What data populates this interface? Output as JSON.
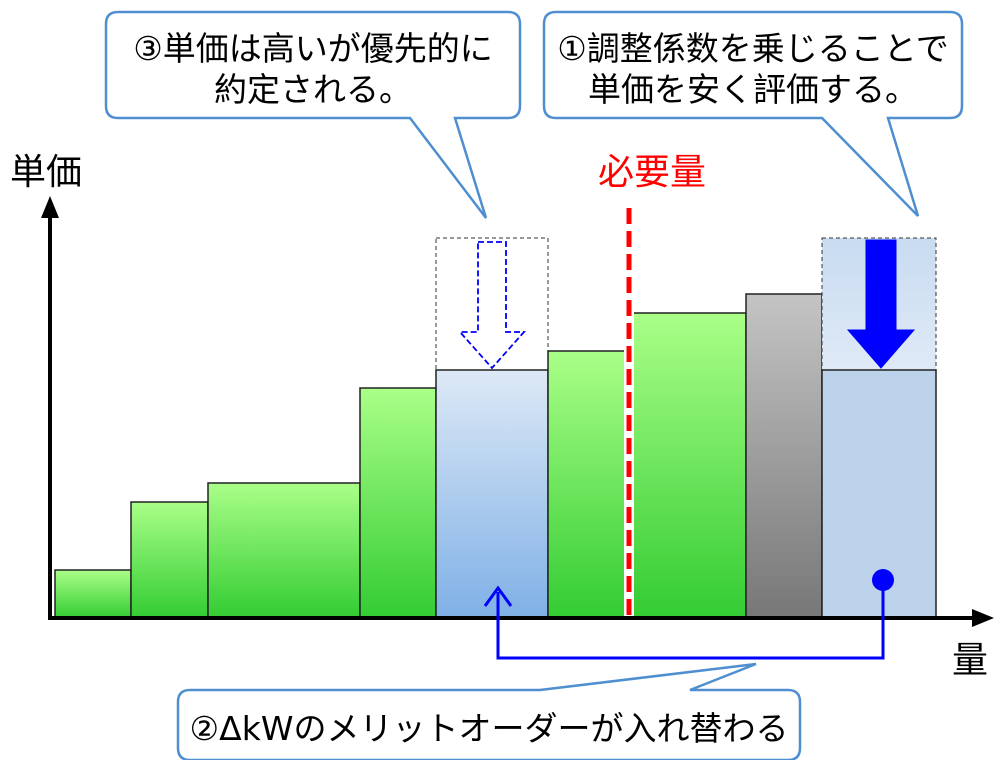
{
  "axes": {
    "y_label": "単価",
    "x_label": "量"
  },
  "demand_line": {
    "label": "必要量",
    "color": "#ff0000"
  },
  "callouts": {
    "top_left": {
      "line1": "③単価は高いが優先的に",
      "line2": "約定される。"
    },
    "top_right": {
      "line1": "①調整係数を乗じることで",
      "line2": "単価を安く評価する。"
    },
    "bottom": {
      "text": "②ΔkWのメリットオーダーが入れ替わる"
    }
  },
  "colors": {
    "callout_border": "#4f8fd0",
    "arrow_blue": "#0000ff",
    "green_bar_top": "#aaff88",
    "green_bar_bottom": "#33cc33",
    "gray_bar_top": "#bdbdbd",
    "gray_bar_bottom": "#7f7f7f",
    "adjusted_bar": "#bdd3ec"
  },
  "chart_data": {
    "type": "bar",
    "description_units": "relative",
    "bars": [
      {
        "kind": "green",
        "price": 1.0
      },
      {
        "kind": "green",
        "price": 2.05
      },
      {
        "kind": "green",
        "price": 2.3
      },
      {
        "kind": "green",
        "price": 4.7
      },
      {
        "kind": "adjusted",
        "price": 4.7,
        "original_price": 7.7
      },
      {
        "kind": "green",
        "price": 6.35
      },
      {
        "kind": "green",
        "price": 7.1
      },
      {
        "kind": "gray",
        "price": 7.85
      },
      {
        "kind": "adjusted",
        "price": 5.6,
        "original_price": 9.0
      }
    ]
  }
}
